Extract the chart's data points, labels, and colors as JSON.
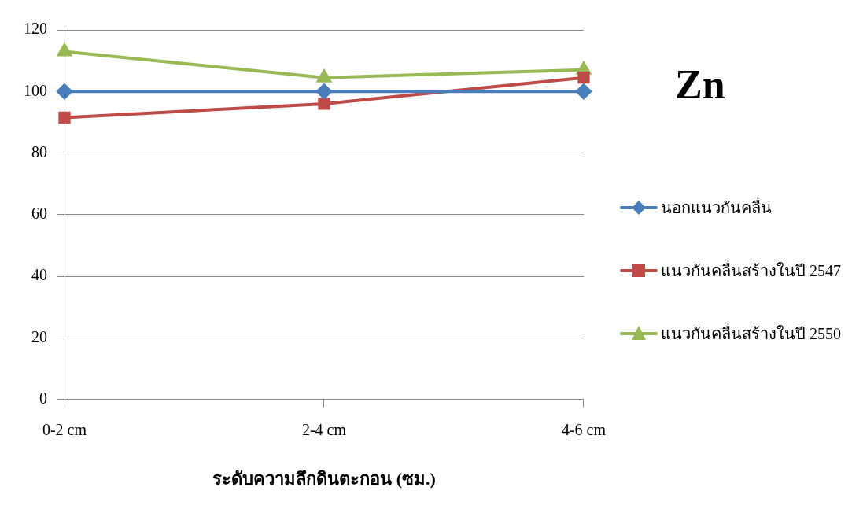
{
  "chart_data": {
    "type": "line",
    "title": "Zn",
    "xlabel": "ระดับความลึกดินตะกอน (ซม.)",
    "categories": [
      "0-2 cm",
      "2-4 cm",
      "4-6 cm"
    ],
    "series": [
      {
        "name": "นอกแนวกันคลื่น",
        "color": "#4a7ebb",
        "marker": "diamond",
        "values": [
          100,
          100,
          100
        ]
      },
      {
        "name": "แนวกันคลื่นสร้างในปี 2547",
        "color": "#be4b48",
        "marker": "square",
        "values": [
          91.5,
          96,
          104.5
        ]
      },
      {
        "name": "แนวกันคลื่นสร้างในปี 2550",
        "color": "#98b954",
        "marker": "triangle",
        "values": [
          113,
          104.5,
          107
        ]
      }
    ],
    "ylim": [
      0,
      120
    ],
    "yticks": [
      0,
      20,
      40,
      60,
      80,
      100,
      120
    ],
    "grid": "y",
    "legend": "right",
    "line_style": "solid"
  }
}
